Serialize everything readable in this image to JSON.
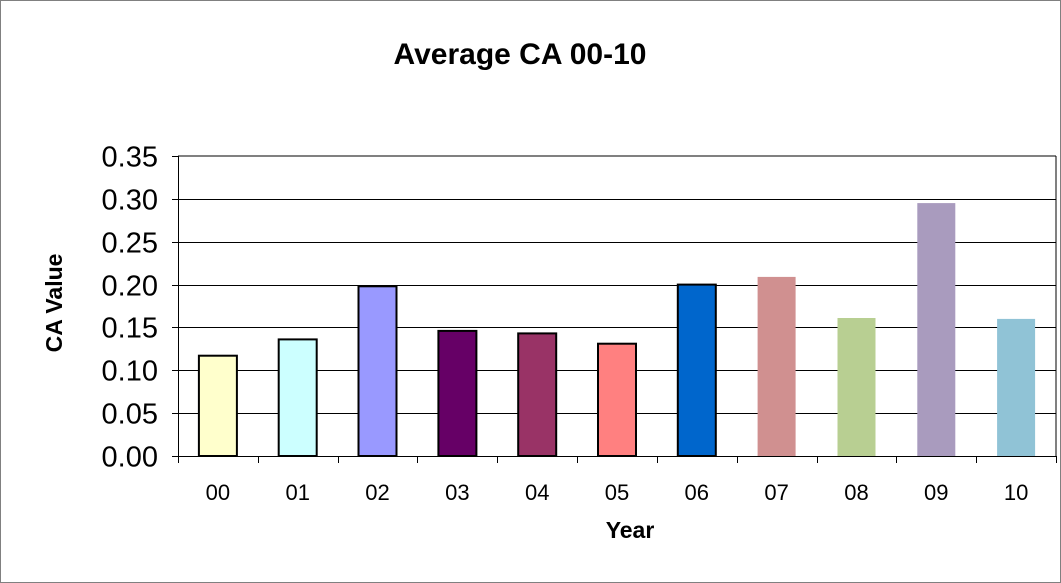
{
  "chart_data": {
    "type": "bar",
    "title": "Average CA 00-10",
    "xlabel": "Year",
    "ylabel": "CA Value",
    "categories": [
      "00",
      "01",
      "02",
      "03",
      "04",
      "05",
      "06",
      "07",
      "08",
      "09",
      "10"
    ],
    "values": [
      0.117,
      0.136,
      0.198,
      0.146,
      0.143,
      0.131,
      0.2,
      0.209,
      0.161,
      0.295,
      0.16
    ],
    "colors": [
      "#FFFFCC",
      "#CCFFFF",
      "#9999FF",
      "#660066",
      "#993366",
      "#FF8080",
      "#0066CC",
      "#D09090",
      "#B8CF92",
      "#A99BBE",
      "#90C3D6"
    ],
    "bar_outline": [
      true,
      true,
      true,
      true,
      true,
      true,
      true,
      false,
      false,
      false,
      false
    ],
    "ylim": [
      0,
      0.35
    ],
    "yticks": [
      "0.00",
      "0.05",
      "0.10",
      "0.15",
      "0.20",
      "0.25",
      "0.30",
      "0.35"
    ],
    "grid": true,
    "legend": "none"
  }
}
